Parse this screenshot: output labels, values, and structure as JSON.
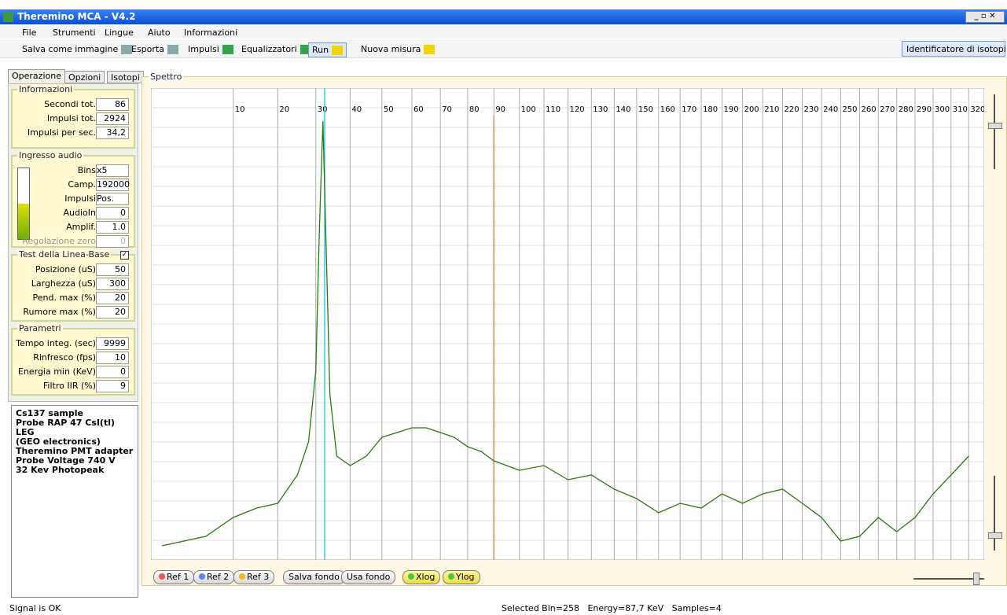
{
  "window": {
    "title": "Theremino MCA - V4.2"
  },
  "menu": [
    "File",
    "Strumenti",
    "Lingue",
    "Aiuto",
    "Informazioni"
  ],
  "toolbar": [
    "Salva come immagine",
    "Esporta",
    "Impulsi",
    "Equalizzatori",
    "Run",
    "Nuova misura"
  ],
  "toolbar_right": "Identificatore di isotopi",
  "tabs": [
    "Operazione",
    "Opzioni",
    "Isotopi"
  ],
  "groups": [
    {
      "title": "Informazioni",
      "fields": [
        {
          "label": "Secondi tot.",
          "value": "86"
        },
        {
          "label": "Impulsi tot.",
          "value": "2924"
        },
        {
          "label": "Impulsi per sec.",
          "value": "34,2"
        }
      ]
    },
    {
      "title": "Ingresso audio",
      "fields": [
        {
          "label": "Bins",
          "value": "x5"
        },
        {
          "label": "Camp.",
          "value": "192000"
        },
        {
          "label": "Impulsi",
          "value": "Pos."
        },
        {
          "label": "AudioIn",
          "value": "0"
        },
        {
          "label": "Amplif.",
          "value": "1.0"
        },
        {
          "label": "Regolazione zero",
          "value": "0"
        }
      ]
    },
    {
      "title": "Test della Linea-Base",
      "fields": [
        {
          "label": "Posizione (uS)",
          "value": "50"
        },
        {
          "label": "Larghezza (uS)",
          "value": "300"
        },
        {
          "label": "Pend. max (%)",
          "value": "20"
        },
        {
          "label": "Rumore max (%)",
          "value": "20"
        }
      ]
    },
    {
      "title": "Parametri",
      "fields": [
        {
          "label": "Tempo integ. (sec)",
          "value": "9999"
        },
        {
          "label": "Rinfresco (fps)",
          "value": "10"
        },
        {
          "label": "Energia min (KeV)",
          "value": "0"
        },
        {
          "label": "Filtro IIR (%)",
          "value": "9"
        }
      ]
    }
  ],
  "notes": [
    "Cs137 sample",
    "Probe RAP 47 CsI(tl) LEG",
    "(GEO electronics)",
    "Theremino PMT adapter",
    "Probe Voltage 740 V",
    "32 Kev Photopeak"
  ],
  "spectrum": {
    "title": "Spettro",
    "xticks": [
      10,
      20,
      30,
      40,
      50,
      60,
      70,
      80,
      90,
      100,
      110,
      120,
      130,
      140,
      150,
      160,
      170,
      180,
      190,
      200,
      210,
      220,
      230,
      240,
      250,
      260,
      270,
      280,
      290,
      300,
      310,
      320
    ],
    "x": [
      0,
      5,
      10,
      15,
      20,
      25,
      28,
      30,
      31,
      32,
      34,
      36,
      40,
      45,
      50,
      55,
      60,
      65,
      70,
      75,
      80,
      85,
      90,
      100,
      110,
      120,
      130,
      140,
      150,
      160,
      170,
      180,
      190,
      200,
      210,
      220,
      230,
      240,
      250,
      260,
      270,
      280,
      290,
      300,
      310,
      320
    ],
    "values": [
      3,
      5,
      9,
      11,
      12,
      18,
      25,
      40,
      70,
      93,
      35,
      22,
      20,
      22,
      26,
      27,
      28,
      28,
      27,
      26,
      24,
      23,
      21,
      19,
      20,
      17,
      18,
      15,
      13,
      10,
      12,
      11,
      14,
      12,
      14,
      15,
      12,
      9,
      4,
      5,
      9,
      6,
      9,
      14,
      18,
      22
    ],
    "buttons": [
      "Ref 1",
      "Ref 2",
      "Ref 3",
      "Salva fondo",
      "Usa fondo",
      "Xlog",
      "Ylog"
    ]
  },
  "status": {
    "left": "Signal is OK",
    "right": "Selected Bin=258   Energy=87,7 KeV   Samples=4"
  }
}
